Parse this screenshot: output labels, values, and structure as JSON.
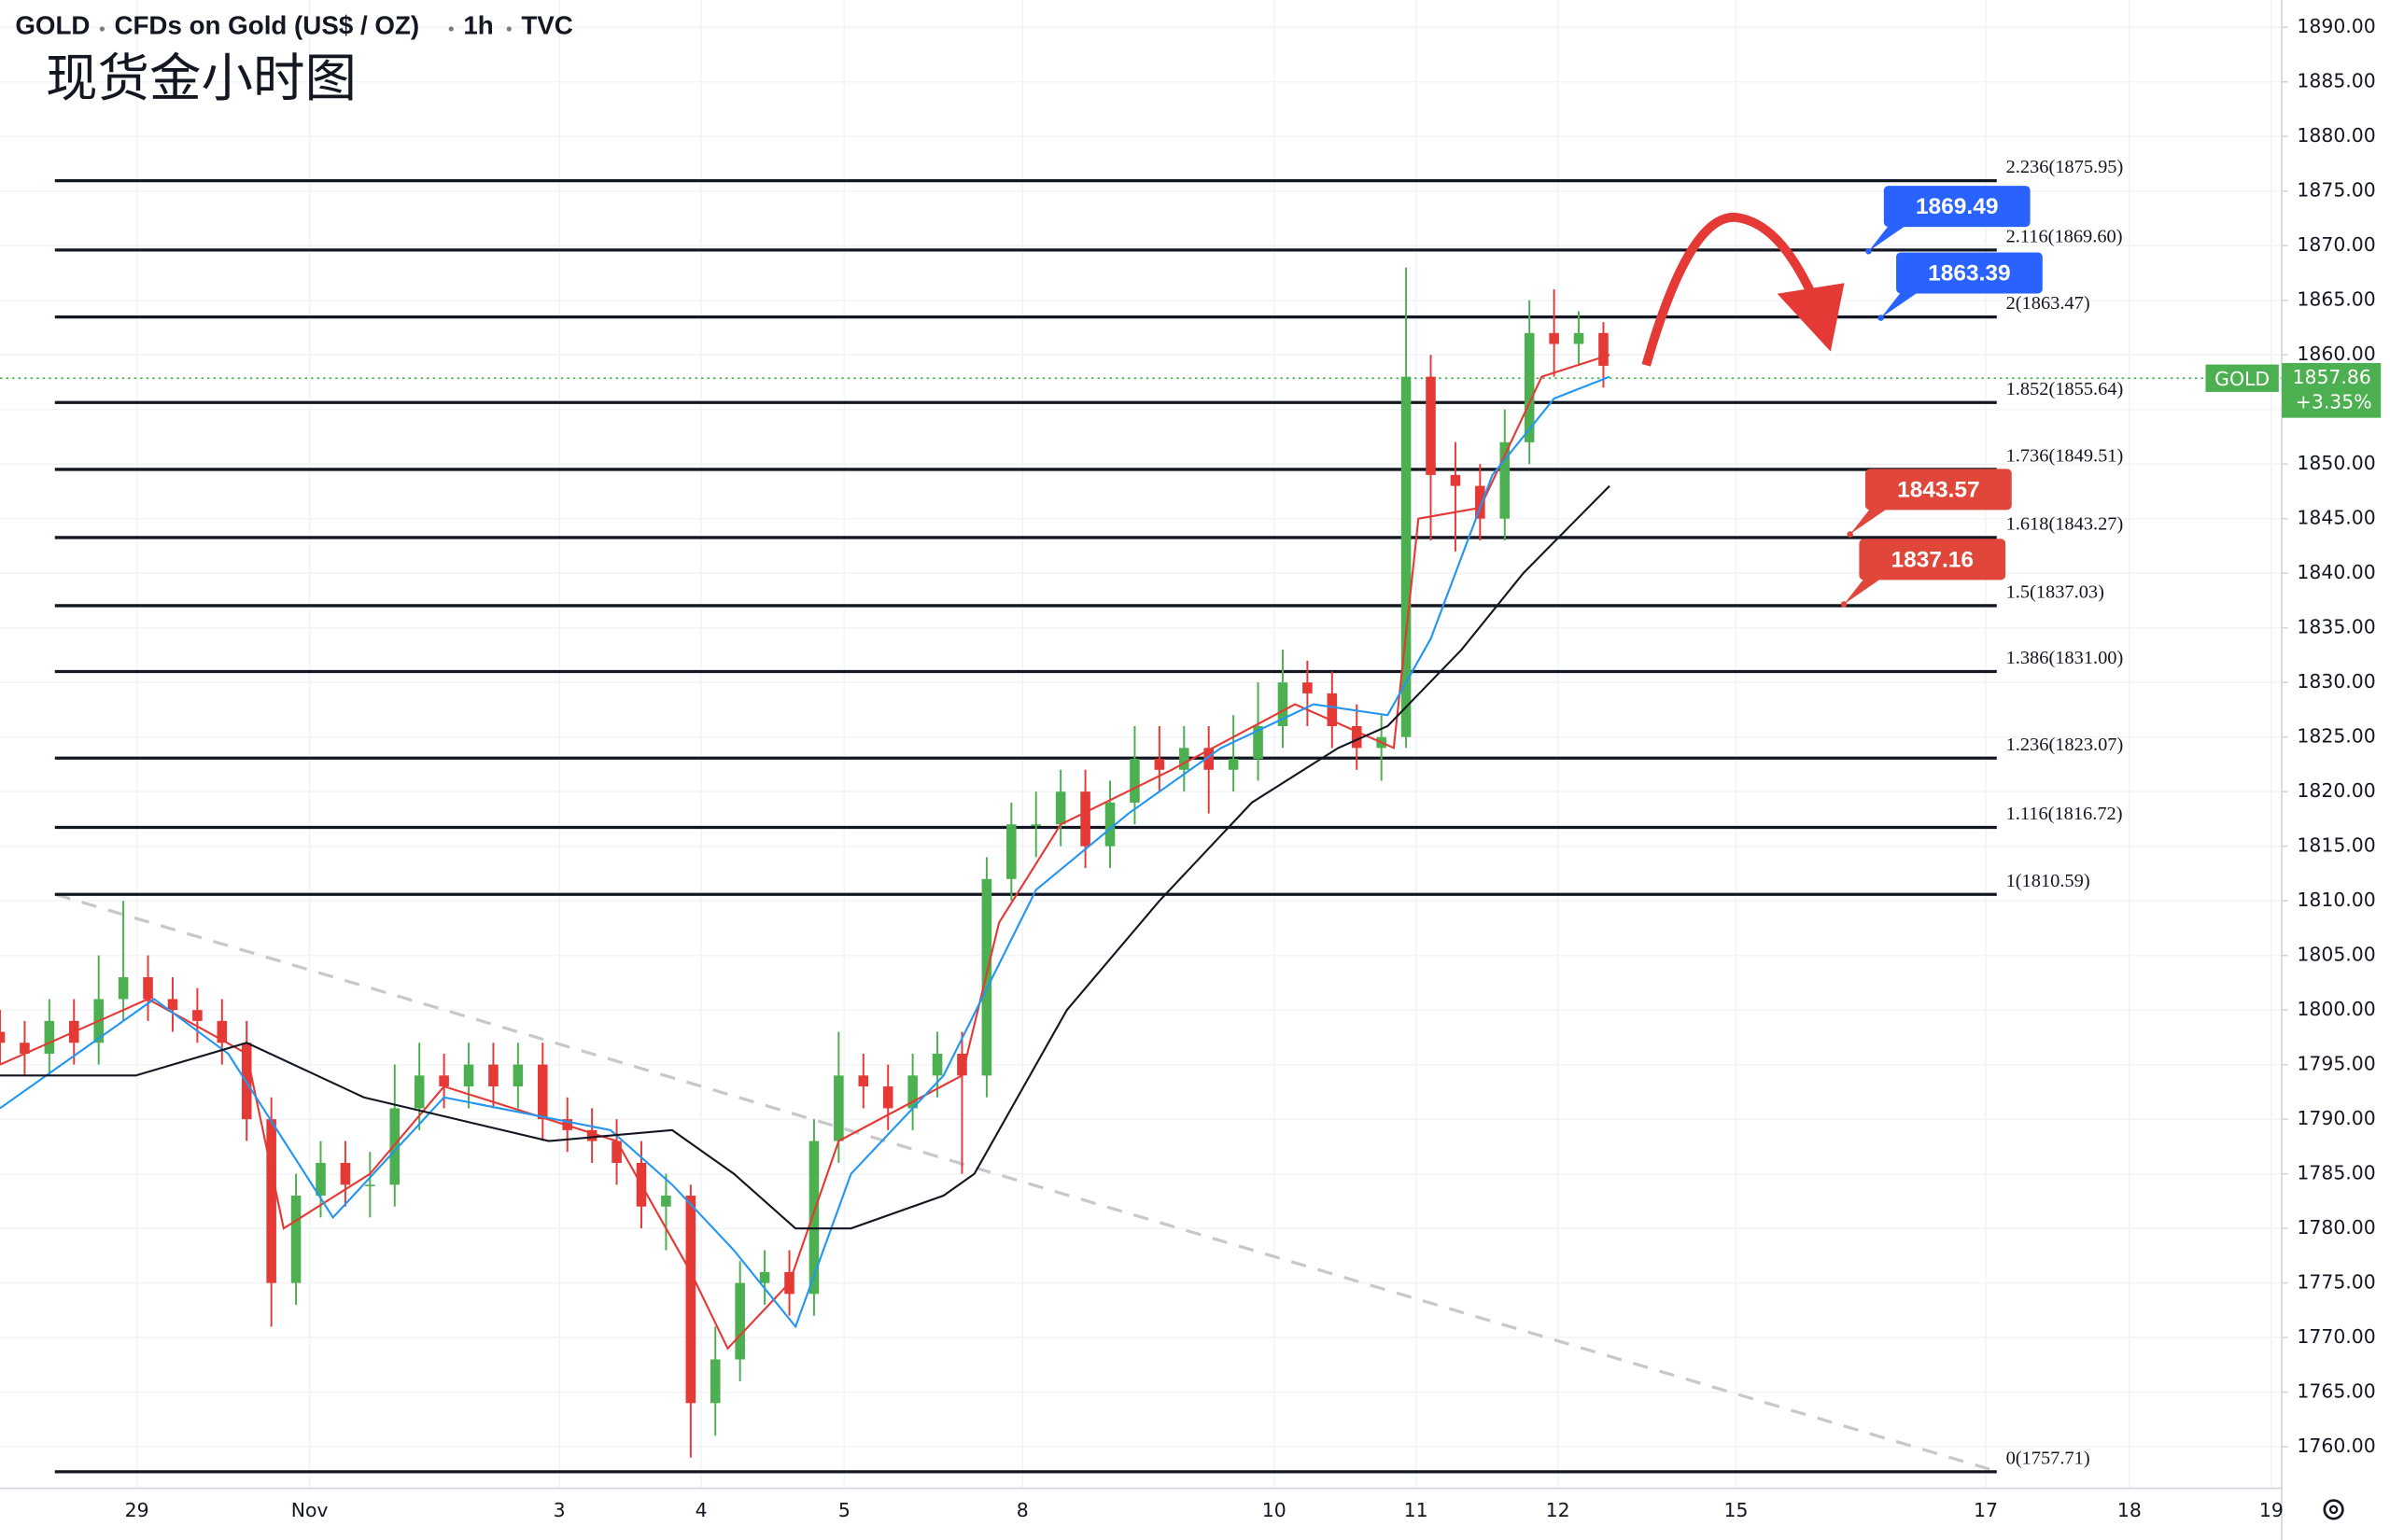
{
  "header": {
    "symbol": "GOLD",
    "name": "CFDs on Gold (US$ / OZ)",
    "interval": "1h",
    "source": "TVC"
  },
  "chart_data": {
    "type": "candlestick",
    "title": "现货金小时图",
    "x": [
      0,
      4,
      8,
      12,
      16,
      20,
      24,
      28,
      32,
      36,
      40,
      44,
      48,
      52,
      56,
      60,
      64,
      68,
      72,
      76,
      80,
      84,
      88,
      92,
      96,
      100,
      104,
      108,
      112,
      116,
      120,
      124,
      128,
      132,
      136,
      140,
      144,
      148,
      152,
      156,
      160,
      164,
      168,
      172,
      176,
      180,
      184,
      188,
      192,
      196,
      200,
      204,
      208,
      212,
      216,
      220,
      224,
      228,
      232,
      236,
      240,
      244,
      248,
      252,
      256,
      260
    ],
    "open": [
      1798,
      1797,
      1796,
      1799,
      1797,
      1801,
      1803,
      1801,
      1800,
      1799,
      1797,
      1790,
      1775,
      1783,
      1786,
      1784,
      1784,
      1791,
      1794,
      1793,
      1795,
      1793,
      1795,
      1790,
      1789,
      1788,
      1786,
      1782,
      1783,
      1764,
      1768,
      1775,
      1776,
      1774,
      1788,
      1794,
      1793,
      1791,
      1794,
      1796,
      1794,
      1812,
      1817,
      1817,
      1820,
      1815,
      1819,
      1823,
      1822,
      1824,
      1822,
      1823,
      1826,
      1830,
      1829,
      1826,
      1824,
      1825,
      1858,
      1849,
      1848,
      1845,
      1852,
      1862,
      1861,
      1862
    ],
    "high": [
      1800,
      1799,
      1801,
      1801,
      1805,
      1810,
      1805,
      1803,
      1802,
      1801,
      1799,
      1792,
      1785,
      1788,
      1788,
      1787,
      1795,
      1797,
      1796,
      1797,
      1797,
      1797,
      1797,
      1792,
      1791,
      1790,
      1788,
      1785,
      1784,
      1771,
      1777,
      1778,
      1778,
      1790,
      1798,
      1796,
      1795,
      1796,
      1798,
      1798,
      1814,
      1819,
      1820,
      1822,
      1822,
      1821,
      1826,
      1826,
      1826,
      1826,
      1827,
      1830,
      1833,
      1832,
      1831,
      1828,
      1827,
      1868,
      1860,
      1852,
      1850,
      1855,
      1865,
      1866,
      1864,
      1863
    ],
    "low": [
      1795,
      1794,
      1794,
      1795,
      1795,
      1799,
      1799,
      1798,
      1797,
      1795,
      1788,
      1771,
      1773,
      1781,
      1782,
      1781,
      1782,
      1789,
      1791,
      1791,
      1791,
      1791,
      1788,
      1787,
      1786,
      1784,
      1780,
      1778,
      1759,
      1761,
      1766,
      1773,
      1772,
      1772,
      1786,
      1791,
      1789,
      1789,
      1792,
      1785,
      1792,
      1810,
      1814,
      1815,
      1813,
      1813,
      1817,
      1820,
      1820,
      1818,
      1820,
      1821,
      1824,
      1826,
      1824,
      1822,
      1821,
      1824,
      1843,
      1842,
      1843,
      1843,
      1850,
      1858,
      1859,
      1857
    ],
    "close": [
      1797,
      1796,
      1799,
      1797,
      1801,
      1803,
      1801,
      1800,
      1799,
      1797,
      1790,
      1775,
      1783,
      1786,
      1784,
      1784,
      1791,
      1794,
      1793,
      1795,
      1793,
      1795,
      1790,
      1789,
      1788,
      1786,
      1782,
      1783,
      1764,
      1768,
      1775,
      1776,
      1774,
      1788,
      1794,
      1793,
      1791,
      1794,
      1796,
      1794,
      1812,
      1817,
      1817,
      1820,
      1815,
      1819,
      1823,
      1822,
      1824,
      1822,
      1823,
      1826,
      1830,
      1829,
      1826,
      1824,
      1825,
      1858,
      1849,
      1848,
      1845,
      1852,
      1862,
      1861,
      1862,
      1859
    ],
    "up_color": "#4caf50",
    "down_color": "#e53935",
    "moving_averages": [
      {
        "color": "#e53935",
        "x": [
          0,
          24,
          40,
          46,
          60,
          72,
          100,
          112,
          118,
          128,
          136,
          156,
          162,
          172,
          190,
          210,
          226,
          230,
          240,
          250,
          261
        ],
        "values": [
          1795,
          1801,
          1796,
          1780,
          1785,
          1793,
          1788,
          1776,
          1769,
          1775,
          1788,
          1794,
          1808,
          1817,
          1822,
          1828,
          1824,
          1845,
          1846,
          1858,
          1860
        ]
      },
      {
        "color": "#2196f3",
        "x": [
          0,
          25,
          37,
          54,
          72,
          99,
          109,
          119,
          129,
          138,
          153,
          168,
          183,
          198,
          213,
          225,
          232,
          242,
          252,
          261
        ],
        "values": [
          1791,
          1801,
          1796,
          1781,
          1792,
          1789,
          1784,
          1778,
          1771,
          1785,
          1794,
          1811,
          1818,
          1824,
          1828,
          1827,
          1834,
          1849,
          1856,
          1858
        ]
      },
      {
        "color": "#131722",
        "x": [
          0,
          22,
          40,
          59,
          74,
          89,
          109,
          119,
          129,
          138,
          153,
          158,
          173,
          188,
          203,
          217,
          225,
          237,
          247,
          261
        ],
        "values": [
          1794,
          1794,
          1797,
          1792,
          1790,
          1788,
          1789,
          1785,
          1780,
          1780,
          1783,
          1785,
          1800,
          1810,
          1819,
          1824,
          1826,
          1833,
          1840,
          1848
        ]
      }
    ],
    "fib_levels": [
      {
        "label": "2.236(1875.95)",
        "value": 1875.95
      },
      {
        "label": "2.116(1869.60)",
        "value": 1869.6
      },
      {
        "label": "2(1863.47)",
        "value": 1863.47
      },
      {
        "label": "1.852(1855.64)",
        "value": 1855.64
      },
      {
        "label": "1.736(1849.51)",
        "value": 1849.51
      },
      {
        "label": "1.618(1843.27)",
        "value": 1843.27
      },
      {
        "label": "1.5(1837.03)",
        "value": 1837.03
      },
      {
        "label": "1.386(1831.00)",
        "value": 1831.0
      },
      {
        "label": "1.236(1823.07)",
        "value": 1823.07
      },
      {
        "label": "1.116(1816.72)",
        "value": 1816.72
      },
      {
        "label": "1(1810.59)",
        "value": 1810.59
      },
      {
        "label": "0(1757.71)",
        "value": 1757.71
      }
    ],
    "callouts": [
      {
        "value": 1869.49,
        "color": "#2962ff"
      },
      {
        "value": 1863.39,
        "color": "#2962ff"
      },
      {
        "value": 1843.57,
        "color": "#e0463a"
      },
      {
        "value": 1837.16,
        "color": "#e0463a"
      }
    ],
    "last_price": {
      "name": "GOLD",
      "value": 1857.86,
      "change": "+3.35%",
      "color": "#4caf50"
    },
    "trendline": {
      "x": [
        9,
        324
      ],
      "values": [
        1810.59,
        1757.71
      ],
      "color": "#c8c8c8"
    },
    "xlim": [
      0,
      370
    ],
    "xticks": [
      {
        "value": 22.2,
        "label": "29"
      },
      {
        "value": 50.2,
        "label": "Nov"
      },
      {
        "value": 90.7,
        "label": "3"
      },
      {
        "value": 113.7,
        "label": "4"
      },
      {
        "value": 136.9,
        "label": "5"
      },
      {
        "value": 165.8,
        "label": "8"
      },
      {
        "value": 206.6,
        "label": "10"
      },
      {
        "value": 229.6,
        "label": "11"
      },
      {
        "value": 252.6,
        "label": "12"
      },
      {
        "value": 281.5,
        "label": "15"
      },
      {
        "value": 322.0,
        "label": "17"
      },
      {
        "value": 345.3,
        "label": "18"
      },
      {
        "value": 368.3,
        "label": "19"
      }
    ],
    "ylim": [
      1756.2,
      1892.5
    ],
    "yticks": [
      {
        "value": 1760,
        "label": "1760.00"
      },
      {
        "value": 1765,
        "label": "1765.00"
      },
      {
        "value": 1770,
        "label": "1770.00"
      },
      {
        "value": 1775,
        "label": "1775.00"
      },
      {
        "value": 1780,
        "label": "1780.00"
      },
      {
        "value": 1785,
        "label": "1785.00"
      },
      {
        "value": 1790,
        "label": "1790.00"
      },
      {
        "value": 1795,
        "label": "1795.00"
      },
      {
        "value": 1800,
        "label": "1800.00"
      },
      {
        "value": 1805,
        "label": "1805.00"
      },
      {
        "value": 1810,
        "label": "1810.00"
      },
      {
        "value": 1815,
        "label": "1815.00"
      },
      {
        "value": 1820,
        "label": "1820.00"
      },
      {
        "value": 1825,
        "label": "1825.00"
      },
      {
        "value": 1830,
        "label": "1830.00"
      },
      {
        "value": 1835,
        "label": "1835.00"
      },
      {
        "value": 1840,
        "label": "1840.00"
      },
      {
        "value": 1845,
        "label": "1845.00"
      },
      {
        "value": 1850,
        "label": "1850.00"
      },
      {
        "value": 1855,
        "label": "1855.00"
      },
      {
        "value": 1860,
        "label": "1860.00"
      },
      {
        "value": 1865,
        "label": "1865.00"
      },
      {
        "value": 1870,
        "label": "1870.00"
      },
      {
        "value": 1875,
        "label": "1875.00"
      },
      {
        "value": 1880,
        "label": "1880.00"
      },
      {
        "value": 1885,
        "label": "1885.00"
      },
      {
        "value": 1890,
        "label": "1890.00"
      }
    ],
    "grid": true
  }
}
